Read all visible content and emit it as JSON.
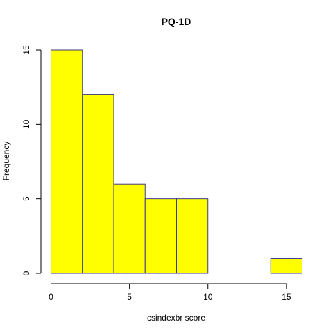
{
  "chart_data": {
    "type": "bar",
    "histogram": true,
    "title": "PQ-1D",
    "xlabel": "csindexbr score",
    "ylabel": "Frequency",
    "bins": [
      {
        "start": 0,
        "end": 2,
        "count": 15
      },
      {
        "start": 2,
        "end": 4,
        "count": 12
      },
      {
        "start": 4,
        "end": 6,
        "count": 6
      },
      {
        "start": 6,
        "end": 8,
        "count": 5
      },
      {
        "start": 8,
        "end": 10,
        "count": 5
      },
      {
        "start": 10,
        "end": 12,
        "count": 0
      },
      {
        "start": 12,
        "end": 14,
        "count": 0
      },
      {
        "start": 14,
        "end": 16,
        "count": 1
      }
    ],
    "xlim": [
      0,
      16
    ],
    "ylim": [
      0,
      15
    ],
    "xticks": [
      "0",
      "5",
      "10",
      "15"
    ],
    "yticks": [
      "0",
      "5",
      "10",
      "15"
    ],
    "bar_fill": "#ffff00",
    "bar_border": "#3a3a8c",
    "grid": false
  }
}
